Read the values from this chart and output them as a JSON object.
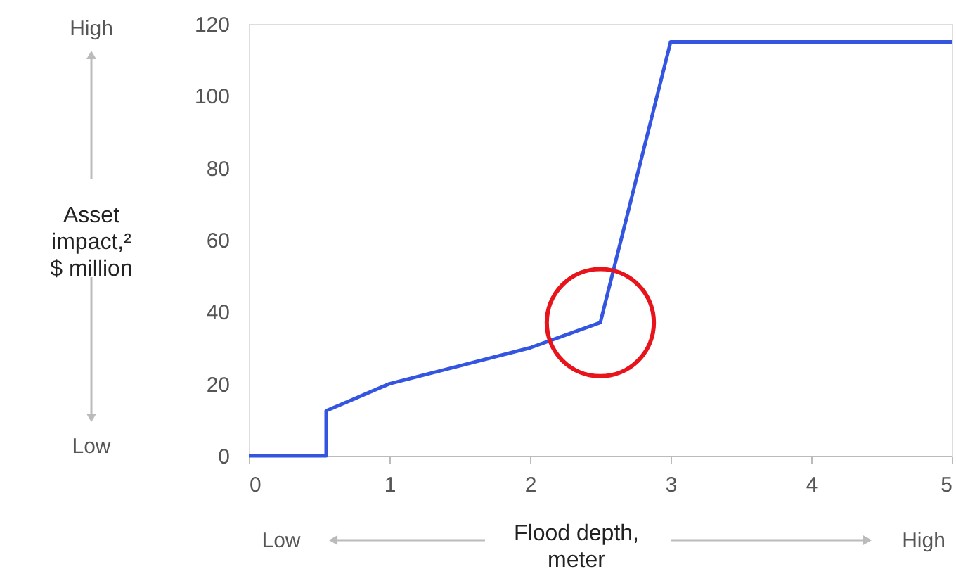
{
  "chart_data": {
    "type": "line",
    "x": [
      0,
      0.55,
      0.55,
      1,
      1.5,
      2,
      2.5,
      3,
      5
    ],
    "series": [
      {
        "color": "#3355e0",
        "values": [
          0,
          0,
          12.5,
          20,
          25,
          30,
          37,
          115,
          115
        ]
      }
    ],
    "xlim": [
      0,
      5
    ],
    "xticks": [
      0,
      1,
      2,
      3,
      4,
      5
    ],
    "ylim": [
      0,
      120
    ],
    "yticks": [
      0,
      20,
      40,
      60,
      80,
      100,
      120
    ],
    "xlabel": "Flood depth,\nmeter",
    "ylabel": "Asset\nimpact,²\n$ million",
    "annotations": [
      "High",
      "Low",
      "Low",
      "High"
    ],
    "grid": false,
    "marker": "none",
    "line_style": "solid"
  }
}
